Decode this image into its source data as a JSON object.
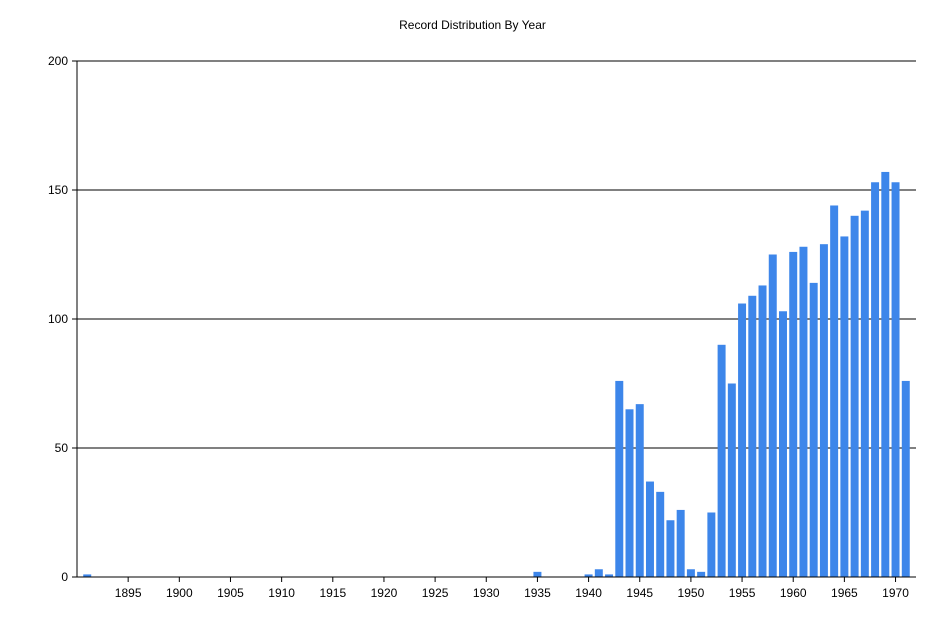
{
  "chart_data": {
    "type": "bar",
    "title": "Record Distribution By Year",
    "xlabel": "",
    "ylabel": "",
    "ylim": [
      0,
      200
    ],
    "xlim": [
      1890,
      1972
    ],
    "y_ticks": [
      0,
      50,
      100,
      150,
      200
    ],
    "x_ticks": [
      1895,
      1900,
      1905,
      1910,
      1915,
      1920,
      1925,
      1930,
      1935,
      1940,
      1945,
      1950,
      1955,
      1960,
      1965,
      1970
    ],
    "grid": "horizontal",
    "bar_color": "#3d86ea",
    "points": [
      {
        "year": 1891,
        "value": 1
      },
      {
        "year": 1935,
        "value": 2
      },
      {
        "year": 1940,
        "value": 1
      },
      {
        "year": 1941,
        "value": 3
      },
      {
        "year": 1942,
        "value": 1
      },
      {
        "year": 1943,
        "value": 76
      },
      {
        "year": 1944,
        "value": 65
      },
      {
        "year": 1945,
        "value": 67
      },
      {
        "year": 1946,
        "value": 37
      },
      {
        "year": 1947,
        "value": 33
      },
      {
        "year": 1948,
        "value": 22
      },
      {
        "year": 1949,
        "value": 26
      },
      {
        "year": 1950,
        "value": 3
      },
      {
        "year": 1951,
        "value": 2
      },
      {
        "year": 1952,
        "value": 25
      },
      {
        "year": 1953,
        "value": 90
      },
      {
        "year": 1954,
        "value": 75
      },
      {
        "year": 1955,
        "value": 106
      },
      {
        "year": 1956,
        "value": 109
      },
      {
        "year": 1957,
        "value": 113
      },
      {
        "year": 1958,
        "value": 125
      },
      {
        "year": 1959,
        "value": 103
      },
      {
        "year": 1960,
        "value": 126
      },
      {
        "year": 1961,
        "value": 128
      },
      {
        "year": 1962,
        "value": 114
      },
      {
        "year": 1963,
        "value": 129
      },
      {
        "year": 1964,
        "value": 144
      },
      {
        "year": 1965,
        "value": 132
      },
      {
        "year": 1966,
        "value": 140
      },
      {
        "year": 1967,
        "value": 142
      },
      {
        "year": 1968,
        "value": 153
      },
      {
        "year": 1969,
        "value": 157
      },
      {
        "year": 1970,
        "value": 153
      },
      {
        "year": 1971,
        "value": 76
      }
    ]
  }
}
